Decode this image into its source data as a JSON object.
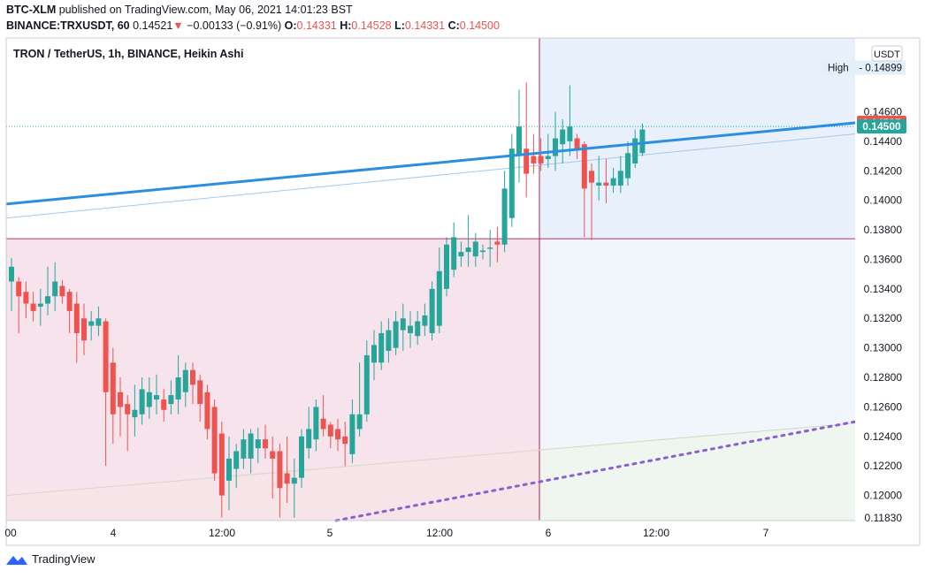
{
  "header": {
    "line1_user": "BTC-XLM",
    "line1_rest": "published on TradingView.com, May 06, 2021 14:01:23 BST",
    "symbol": "BINANCE:TRXUSDT, 60",
    "last": "0.14521",
    "arrow": "▼",
    "change": "−0.00133 (−0.91%)",
    "o_label": "O:",
    "o_val": "0.14331",
    "h_label": "H:",
    "h_val": "0.14528",
    "l_label": "L:",
    "l_val": "0.14331",
    "c_label": "C:",
    "c_val": "0.14500"
  },
  "footer": {
    "brand": "TradingView"
  },
  "chart_data": {
    "type": "candlestick",
    "title": "TRON / TetherUS, 1h, BINANCE, Heikin Ashi",
    "currency": "USDT",
    "y_range": [
      0.1183,
      0.151
    ],
    "y_ticks": [
      "0.14600",
      "0.14400",
      "0.14200",
      "0.14000",
      "0.13800",
      "0.13600",
      "0.13400",
      "0.13200",
      "0.13000",
      "0.12800",
      "0.12600",
      "0.12400",
      "0.12200",
      "0.12000",
      "0.11830"
    ],
    "x_ticks": [
      "00",
      "4",
      "12:00",
      "5",
      "12:00",
      "6",
      "12:00",
      "7"
    ],
    "high_label": "High",
    "high_value": "0.14899",
    "price_labels": [
      {
        "text": "0.14525",
        "value": 0.14525,
        "color": "#ef5350"
      },
      {
        "text": "0.14500",
        "value": 0.145,
        "color": "#26a69a"
      }
    ],
    "colors": {
      "up": "#26a69a",
      "down": "#ef5350",
      "trend": "#2a8fe0",
      "dotted": "#8c5fd0",
      "pink_zone": "#f6e3ec",
      "blue_zone": "#e7f0fb"
    },
    "candles": [
      {
        "o": 0.1345,
        "h": 0.1361,
        "l": 0.1325,
        "c": 0.1355
      },
      {
        "o": 0.1345,
        "h": 0.1348,
        "l": 0.131,
        "c": 0.1335
      },
      {
        "o": 0.1338,
        "h": 0.1345,
        "l": 0.132,
        "c": 0.133
      },
      {
        "o": 0.133,
        "h": 0.1338,
        "l": 0.1318,
        "c": 0.1325
      },
      {
        "o": 0.1328,
        "h": 0.134,
        "l": 0.1315,
        "c": 0.133
      },
      {
        "o": 0.133,
        "h": 0.1355,
        "l": 0.1322,
        "c": 0.1335
      },
      {
        "o": 0.1335,
        "h": 0.1358,
        "l": 0.1325,
        "c": 0.1345
      },
      {
        "o": 0.1342,
        "h": 0.1346,
        "l": 0.133,
        "c": 0.1335
      },
      {
        "o": 0.1338,
        "h": 0.134,
        "l": 0.131,
        "c": 0.1325
      },
      {
        "o": 0.133,
        "h": 0.1338,
        "l": 0.129,
        "c": 0.131
      },
      {
        "o": 0.132,
        "h": 0.133,
        "l": 0.1295,
        "c": 0.1305
      },
      {
        "o": 0.1315,
        "h": 0.1325,
        "l": 0.1305,
        "c": 0.1318
      },
      {
        "o": 0.1315,
        "h": 0.1328,
        "l": 0.1308,
        "c": 0.132
      },
      {
        "o": 0.1318,
        "h": 0.132,
        "l": 0.122,
        "c": 0.127
      },
      {
        "o": 0.129,
        "h": 0.13,
        "l": 0.1235,
        "c": 0.1255
      },
      {
        "o": 0.127,
        "h": 0.128,
        "l": 0.124,
        "c": 0.126
      },
      {
        "o": 0.1262,
        "h": 0.1268,
        "l": 0.123,
        "c": 0.1255
      },
      {
        "o": 0.1253,
        "h": 0.1275,
        "l": 0.124,
        "c": 0.1258
      },
      {
        "o": 0.1255,
        "h": 0.128,
        "l": 0.1248,
        "c": 0.1272
      },
      {
        "o": 0.126,
        "h": 0.128,
        "l": 0.1252,
        "c": 0.127
      },
      {
        "o": 0.1265,
        "h": 0.1282,
        "l": 0.1255,
        "c": 0.1268
      },
      {
        "o": 0.1265,
        "h": 0.1272,
        "l": 0.125,
        "c": 0.1258
      },
      {
        "o": 0.1262,
        "h": 0.1278,
        "l": 0.1255,
        "c": 0.1268
      },
      {
        "o": 0.1265,
        "h": 0.1295,
        "l": 0.1255,
        "c": 0.128
      },
      {
        "o": 0.127,
        "h": 0.129,
        "l": 0.126,
        "c": 0.1285
      },
      {
        "o": 0.1285,
        "h": 0.129,
        "l": 0.1262,
        "c": 0.1275
      },
      {
        "o": 0.1278,
        "h": 0.1282,
        "l": 0.125,
        "c": 0.1262
      },
      {
        "o": 0.127,
        "h": 0.1275,
        "l": 0.1238,
        "c": 0.1245
      },
      {
        "o": 0.126,
        "h": 0.1265,
        "l": 0.121,
        "c": 0.1215
      },
      {
        "o": 0.1242,
        "h": 0.125,
        "l": 0.1185,
        "c": 0.12
      },
      {
        "o": 0.121,
        "h": 0.124,
        "l": 0.119,
        "c": 0.1225
      },
      {
        "o": 0.1218,
        "h": 0.1235,
        "l": 0.1205,
        "c": 0.123
      },
      {
        "o": 0.1225,
        "h": 0.1245,
        "l": 0.1218,
        "c": 0.1238
      },
      {
        "o": 0.1225,
        "h": 0.1245,
        "l": 0.1215,
        "c": 0.1242
      },
      {
        "o": 0.1232,
        "h": 0.1246,
        "l": 0.1222,
        "c": 0.1238
      },
      {
        "o": 0.1238,
        "h": 0.1248,
        "l": 0.1225,
        "c": 0.1232
      },
      {
        "o": 0.123,
        "h": 0.124,
        "l": 0.1198,
        "c": 0.1225
      },
      {
        "o": 0.123,
        "h": 0.1235,
        "l": 0.1185,
        "c": 0.1205
      },
      {
        "o": 0.1215,
        "h": 0.124,
        "l": 0.1195,
        "c": 0.1208
      },
      {
        "o": 0.1208,
        "h": 0.1225,
        "l": 0.1185,
        "c": 0.1212
      },
      {
        "o": 0.1212,
        "h": 0.1245,
        "l": 0.1205,
        "c": 0.124
      },
      {
        "o": 0.1232,
        "h": 0.126,
        "l": 0.1225,
        "c": 0.1245
      },
      {
        "o": 0.1238,
        "h": 0.1265,
        "l": 0.123,
        "c": 0.126
      },
      {
        "o": 0.1252,
        "h": 0.1268,
        "l": 0.124,
        "c": 0.1245
      },
      {
        "o": 0.1248,
        "h": 0.125,
        "l": 0.1232,
        "c": 0.124
      },
      {
        "o": 0.1245,
        "h": 0.1252,
        "l": 0.123,
        "c": 0.1238
      },
      {
        "o": 0.124,
        "h": 0.125,
        "l": 0.122,
        "c": 0.1235
      },
      {
        "o": 0.1228,
        "h": 0.1265,
        "l": 0.1222,
        "c": 0.1255
      },
      {
        "o": 0.1245,
        "h": 0.129,
        "l": 0.124,
        "c": 0.1255
      },
      {
        "o": 0.1255,
        "h": 0.1305,
        "l": 0.125,
        "c": 0.1295
      },
      {
        "o": 0.129,
        "h": 0.1312,
        "l": 0.1278,
        "c": 0.1302
      },
      {
        "o": 0.129,
        "h": 0.1318,
        "l": 0.1285,
        "c": 0.131
      },
      {
        "o": 0.1298,
        "h": 0.132,
        "l": 0.129,
        "c": 0.1312
      },
      {
        "o": 0.13,
        "h": 0.1325,
        "l": 0.1295,
        "c": 0.1318
      },
      {
        "o": 0.1312,
        "h": 0.133,
        "l": 0.1298,
        "c": 0.132
      },
      {
        "o": 0.131,
        "h": 0.1325,
        "l": 0.13,
        "c": 0.1315
      },
      {
        "o": 0.1308,
        "h": 0.1325,
        "l": 0.1302,
        "c": 0.1318
      },
      {
        "o": 0.1315,
        "h": 0.133,
        "l": 0.1308,
        "c": 0.1322
      },
      {
        "o": 0.131,
        "h": 0.1345,
        "l": 0.1305,
        "c": 0.134
      },
      {
        "o": 0.1315,
        "h": 0.1368,
        "l": 0.131,
        "c": 0.1352
      },
      {
        "o": 0.134,
        "h": 0.1375,
        "l": 0.1335,
        "c": 0.137
      },
      {
        "o": 0.1353,
        "h": 0.1385,
        "l": 0.1348,
        "c": 0.1375
      },
      {
        "o": 0.1362,
        "h": 0.1372,
        "l": 0.1355,
        "c": 0.1365
      },
      {
        "o": 0.1365,
        "h": 0.139,
        "l": 0.1355,
        "c": 0.1368
      },
      {
        "o": 0.1362,
        "h": 0.1378,
        "l": 0.1355,
        "c": 0.1372
      },
      {
        "o": 0.1365,
        "h": 0.137,
        "l": 0.136,
        "c": 0.1366
      },
      {
        "o": 0.1368,
        "h": 0.138,
        "l": 0.1355,
        "c": 0.1368
      },
      {
        "o": 0.1372,
        "h": 0.1382,
        "l": 0.1358,
        "c": 0.137
      },
      {
        "o": 0.137,
        "h": 0.142,
        "l": 0.1365,
        "c": 0.1408
      },
      {
        "o": 0.1388,
        "h": 0.1445,
        "l": 0.1382,
        "c": 0.1435
      },
      {
        "o": 0.143,
        "h": 0.1475,
        "l": 0.1412,
        "c": 0.145
      },
      {
        "o": 0.1435,
        "h": 0.148,
        "l": 0.1402,
        "c": 0.1418
      },
      {
        "o": 0.143,
        "h": 0.1445,
        "l": 0.1418,
        "c": 0.1425
      },
      {
        "o": 0.143,
        "h": 0.1442,
        "l": 0.142,
        "c": 0.1425
      },
      {
        "o": 0.1428,
        "h": 0.1445,
        "l": 0.1422,
        "c": 0.143
      },
      {
        "o": 0.143,
        "h": 0.146,
        "l": 0.142,
        "c": 0.1442
      },
      {
        "o": 0.1438,
        "h": 0.1455,
        "l": 0.1425,
        "c": 0.1448
      },
      {
        "o": 0.144,
        "h": 0.1478,
        "l": 0.143,
        "c": 0.145
      },
      {
        "o": 0.1442,
        "h": 0.1445,
        "l": 0.1428,
        "c": 0.1435
      },
      {
        "o": 0.1438,
        "h": 0.144,
        "l": 0.1375,
        "c": 0.1408
      },
      {
        "o": 0.142,
        "h": 0.1425,
        "l": 0.1373,
        "c": 0.1412
      },
      {
        "o": 0.141,
        "h": 0.143,
        "l": 0.14,
        "c": 0.1412
      },
      {
        "o": 0.1412,
        "h": 0.1428,
        "l": 0.1398,
        "c": 0.141
      },
      {
        "o": 0.141,
        "h": 0.1422,
        "l": 0.1405,
        "c": 0.1415
      },
      {
        "o": 0.141,
        "h": 0.143,
        "l": 0.1405,
        "c": 0.142
      },
      {
        "o": 0.1415,
        "h": 0.144,
        "l": 0.141,
        "c": 0.1432
      },
      {
        "o": 0.1425,
        "h": 0.1448,
        "l": 0.1422,
        "c": 0.1442
      },
      {
        "o": 0.1432,
        "h": 0.1452,
        "l": 0.143,
        "c": 0.1448
      }
    ]
  }
}
